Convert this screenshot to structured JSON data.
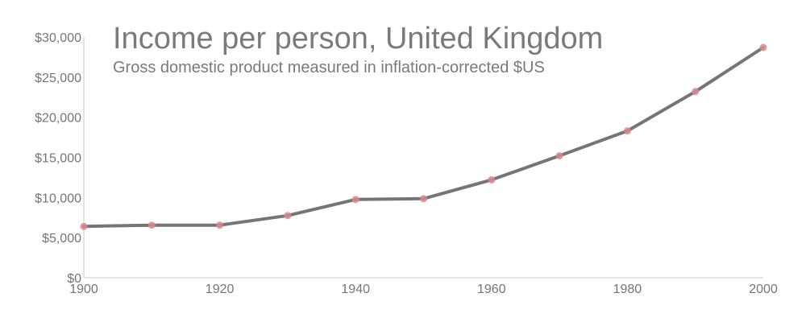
{
  "chart_data": {
    "type": "line",
    "title": "Income per person, United Kingdom",
    "subtitle": "Gross domestic product measured in inflation-corrected $US",
    "xlabel": "",
    "ylabel": "",
    "x": [
      1900,
      1910,
      1920,
      1930,
      1940,
      1950,
      1960,
      1970,
      1980,
      1990,
      2000
    ],
    "values": [
      6400,
      6550,
      6550,
      7750,
      9750,
      9850,
      12200,
      15200,
      18300,
      23200,
      28700
    ],
    "xlim": [
      1900,
      2000
    ],
    "ylim": [
      0,
      30000
    ],
    "x_ticks": [
      1900,
      1920,
      1940,
      1960,
      1980,
      2000
    ],
    "x_tick_labels": [
      "1900",
      "1920",
      "1940",
      "1960",
      "1980",
      "2000"
    ],
    "y_ticks": [
      0,
      5000,
      10000,
      15000,
      20000,
      25000,
      30000
    ],
    "y_tick_labels": [
      "$0",
      "$5,000",
      "$10,000",
      "$15,000",
      "$20,000",
      "$25,000",
      "$30,000"
    ],
    "grid": false,
    "legend": "none",
    "line_color": "#757575",
    "point_color": "#d9888c"
  }
}
